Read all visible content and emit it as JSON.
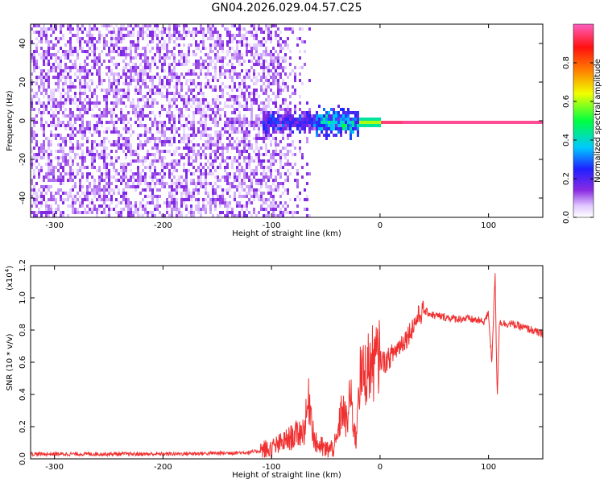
{
  "title": "GN04.2026.029.04.57.C25",
  "colors": {
    "snr_line": "#f03030",
    "axes": "#000000",
    "background": "#ffffff"
  },
  "chart_data": [
    {
      "type": "heatmap",
      "xlabel": "Height of straight line (km)",
      "ylabel": "Frequency (Hz)",
      "xlim": [
        -322,
        150
      ],
      "ylim": [
        -50,
        50
      ],
      "x_ticks": [
        -300,
        -200,
        -100,
        0,
        100
      ],
      "x_tick_labels": [
        "-300",
        "-200",
        "-100",
        "0",
        "100"
      ],
      "y_ticks": [
        -40,
        -20,
        0,
        20,
        40
      ],
      "y_tick_labels": [
        "-40",
        "-20",
        "0",
        "20",
        "40"
      ],
      "colorbar": {
        "label": "Normalized spectral amplitude",
        "range": [
          0,
          1
        ],
        "ticks": [
          0.0,
          0.2,
          0.4,
          0.6,
          0.8
        ],
        "tick_labels": [
          "0.0",
          "0.2",
          "0.4",
          "0.6",
          "0.8"
        ],
        "colormap": "rainbow (violet → blue → cyan → green → yellow → red → pink)"
      },
      "features": {
        "noise_region_x": [
          -322,
          -65
        ],
        "noise_amplitude": 0.08,
        "carrier_frequency_hz": 0,
        "carrier_bands": [
          {
            "x": [
              -140,
              -110
            ],
            "amplitude": 0.15,
            "halfwidth_hz": 2
          },
          {
            "x": [
              -110,
              -60
            ],
            "amplitude": 0.3,
            "halfwidth_hz": 5
          },
          {
            "x": [
              -60,
              -20
            ],
            "amplitude": 0.45,
            "halfwidth_hz": 6
          },
          {
            "x": [
              -20,
              0
            ],
            "amplitude": 0.6,
            "halfwidth_hz": 3
          },
          {
            "x": [
              0,
              20
            ],
            "amplitude": 0.95,
            "halfwidth_hz": 1.5
          },
          {
            "x": [
              20,
              150
            ],
            "amplitude": 0.97,
            "halfwidth_hz": 1.5
          }
        ]
      }
    },
    {
      "type": "line",
      "xlabel": "Height of straight line (km)",
      "ylabel": "SNR (10 * v/v)",
      "y_scale_label": "(x10",
      "y_scale_exponent": "4",
      "y_scale_close": ")",
      "xlim": [
        -322,
        150
      ],
      "ylim": [
        0,
        1.2
      ],
      "x_ticks": [
        -300,
        -200,
        -100,
        0,
        100
      ],
      "x_tick_labels": [
        "-300",
        "-200",
        "-100",
        "0",
        "100"
      ],
      "y_ticks": [
        0.0,
        0.2,
        0.4,
        0.6,
        0.8,
        1.0,
        1.2
      ],
      "y_tick_labels": [
        "0.0",
        "0.2",
        "0.4",
        "0.6",
        "0.8",
        "1.0",
        "1.2"
      ],
      "series": [
        {
          "x": [
            -322,
            -300,
            -250,
            -200,
            -150,
            -120,
            -100,
            -90,
            -80,
            -70,
            -65,
            -62,
            -60,
            -55,
            -50,
            -45,
            -40,
            -35,
            -30,
            -28,
            -25,
            -22,
            -20,
            -15,
            -10,
            -5,
            0,
            5,
            10,
            15,
            20,
            25,
            30,
            35,
            40,
            50,
            60,
            70,
            80,
            90,
            95,
            100,
            103,
            106,
            108,
            110,
            115,
            120,
            130,
            140,
            150
          ],
          "y": [
            0.03,
            0.03,
            0.03,
            0.03,
            0.035,
            0.04,
            0.06,
            0.1,
            0.14,
            0.18,
            0.38,
            0.2,
            0.1,
            0.08,
            0.05,
            0.06,
            0.1,
            0.32,
            0.2,
            0.42,
            0.25,
            0.1,
            0.48,
            0.52,
            0.58,
            0.6,
            0.62,
            0.6,
            0.64,
            0.68,
            0.72,
            0.76,
            0.82,
            0.88,
            0.92,
            0.89,
            0.88,
            0.87,
            0.87,
            0.86,
            0.85,
            0.9,
            0.6,
            1.15,
            0.38,
            0.85,
            0.84,
            0.84,
            0.82,
            0.8,
            0.77
          ]
        }
      ]
    }
  ]
}
